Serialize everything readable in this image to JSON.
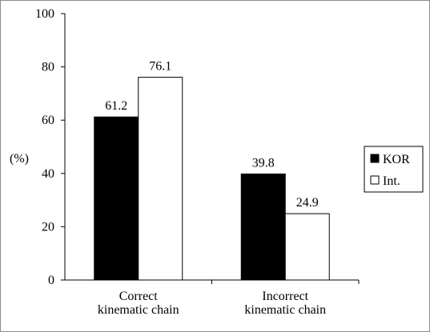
{
  "chart_data": {
    "type": "bar",
    "categories": [
      [
        "Correct",
        "kinematic chain"
      ],
      [
        "Incorrect",
        "kinematic chain"
      ]
    ],
    "series": [
      {
        "name": "KOR",
        "values": [
          61.2,
          39.8
        ],
        "fill": "#000000"
      },
      {
        "name": "Int.",
        "values": [
          76.1,
          24.9
        ],
        "fill": "#ffffff"
      }
    ],
    "data_labels": [
      [
        "61.2",
        "39.8"
      ],
      [
        "76.1",
        "24.9"
      ]
    ],
    "ylabel": "(%)",
    "ylim": [
      0,
      100
    ],
    "yticks": [
      0,
      20,
      40,
      60,
      80,
      100
    ],
    "grid": false,
    "legend_position": "right"
  }
}
